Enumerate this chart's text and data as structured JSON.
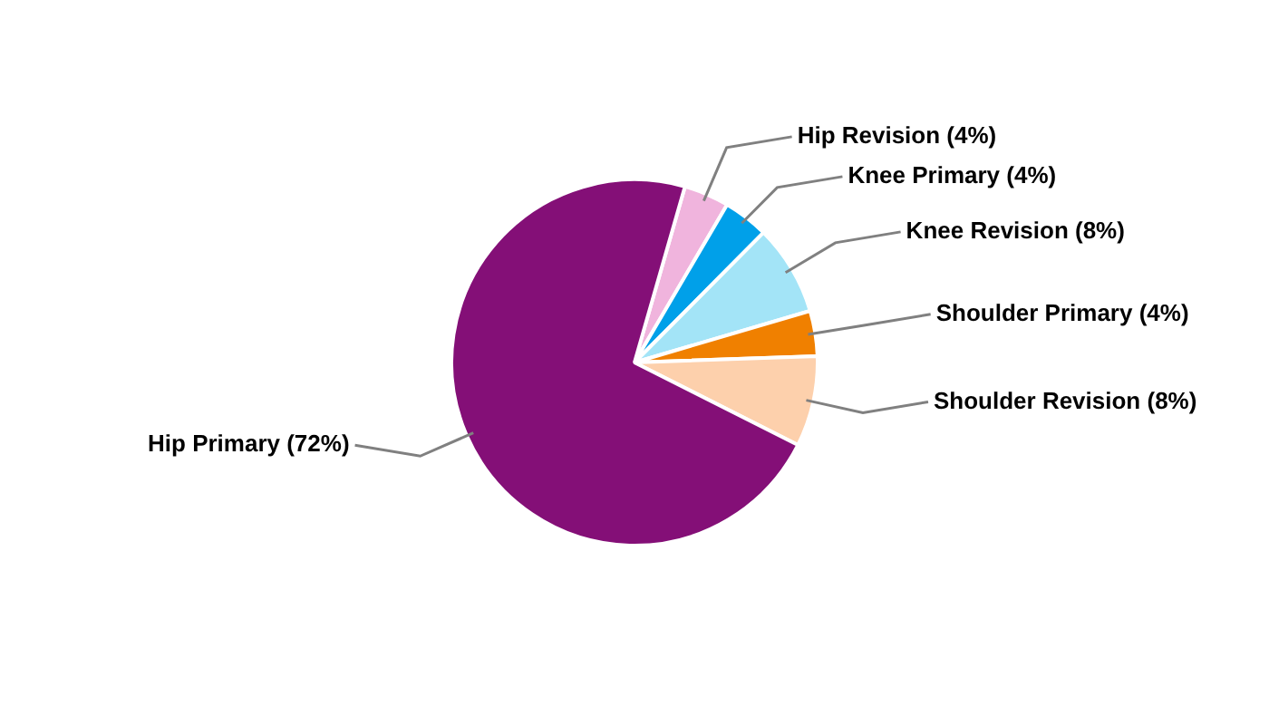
{
  "chart_data": {
    "type": "pie",
    "categories": [
      "Hip Revision",
      "Knee Primary",
      "Knee Revision",
      "Shoulder Primary",
      "Shoulder Revision",
      "Hip Primary"
    ],
    "values": [
      4,
      4,
      8,
      4,
      8,
      72
    ],
    "value_labels": [
      "(4%)",
      "(4%)",
      "(8%)",
      "(4%)",
      "(8%)",
      "(72%)"
    ],
    "colors": [
      "#f0b4dd",
      "#00a0e9",
      "#a3e4f7",
      "#f08000",
      "#fdd0ac",
      "#840f77"
    ],
    "legend": false
  }
}
